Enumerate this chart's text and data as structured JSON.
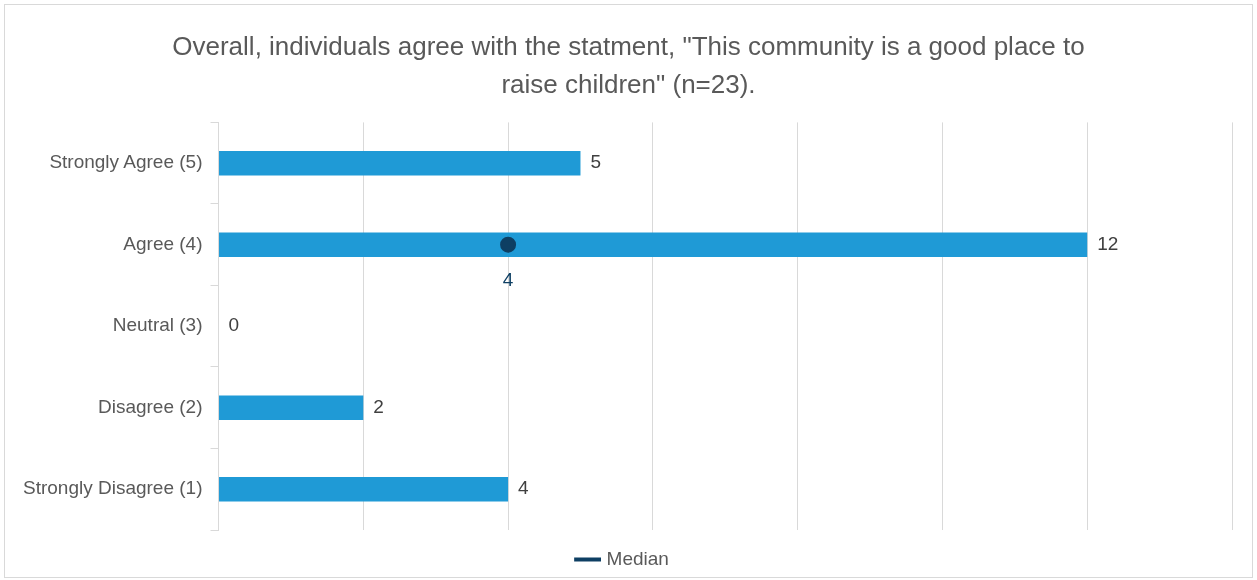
{
  "chart_data": {
    "type": "bar",
    "orientation": "horizontal",
    "title": "Overall, individuals agree with the statment, \"This community is a good place to raise children\" (n=23).",
    "categories": [
      "Strongly Agree (5)",
      "Agree (4)",
      "Neutral (3)",
      "Disagree (2)",
      "Strongly Disagree (1)"
    ],
    "series": [
      {
        "color": "#1f9ad6",
        "values": [
          5,
          12,
          0,
          2,
          4
        ]
      },
      {
        "name": "Median",
        "type": "line",
        "color": "#0e3f63",
        "marker": "circle",
        "values": [
          null,
          4,
          null,
          null,
          null
        ],
        "value_labels": [
          null,
          "4",
          null,
          null,
          null
        ]
      }
    ],
    "xlim": [
      0,
      14
    ],
    "xticks": [
      {
        "value": 0,
        "label": null
      },
      {
        "value": 2,
        "label": null
      },
      {
        "value": 4,
        "label": null
      },
      {
        "value": 6,
        "label": null
      },
      {
        "value": 8,
        "label": null
      },
      {
        "value": 10,
        "label": null
      },
      {
        "value": 12,
        "label": null
      },
      {
        "value": 14,
        "label": null
      }
    ],
    "tick_labels": "y",
    "grid": "x",
    "legend": "bottom",
    "data_labels": true
  }
}
